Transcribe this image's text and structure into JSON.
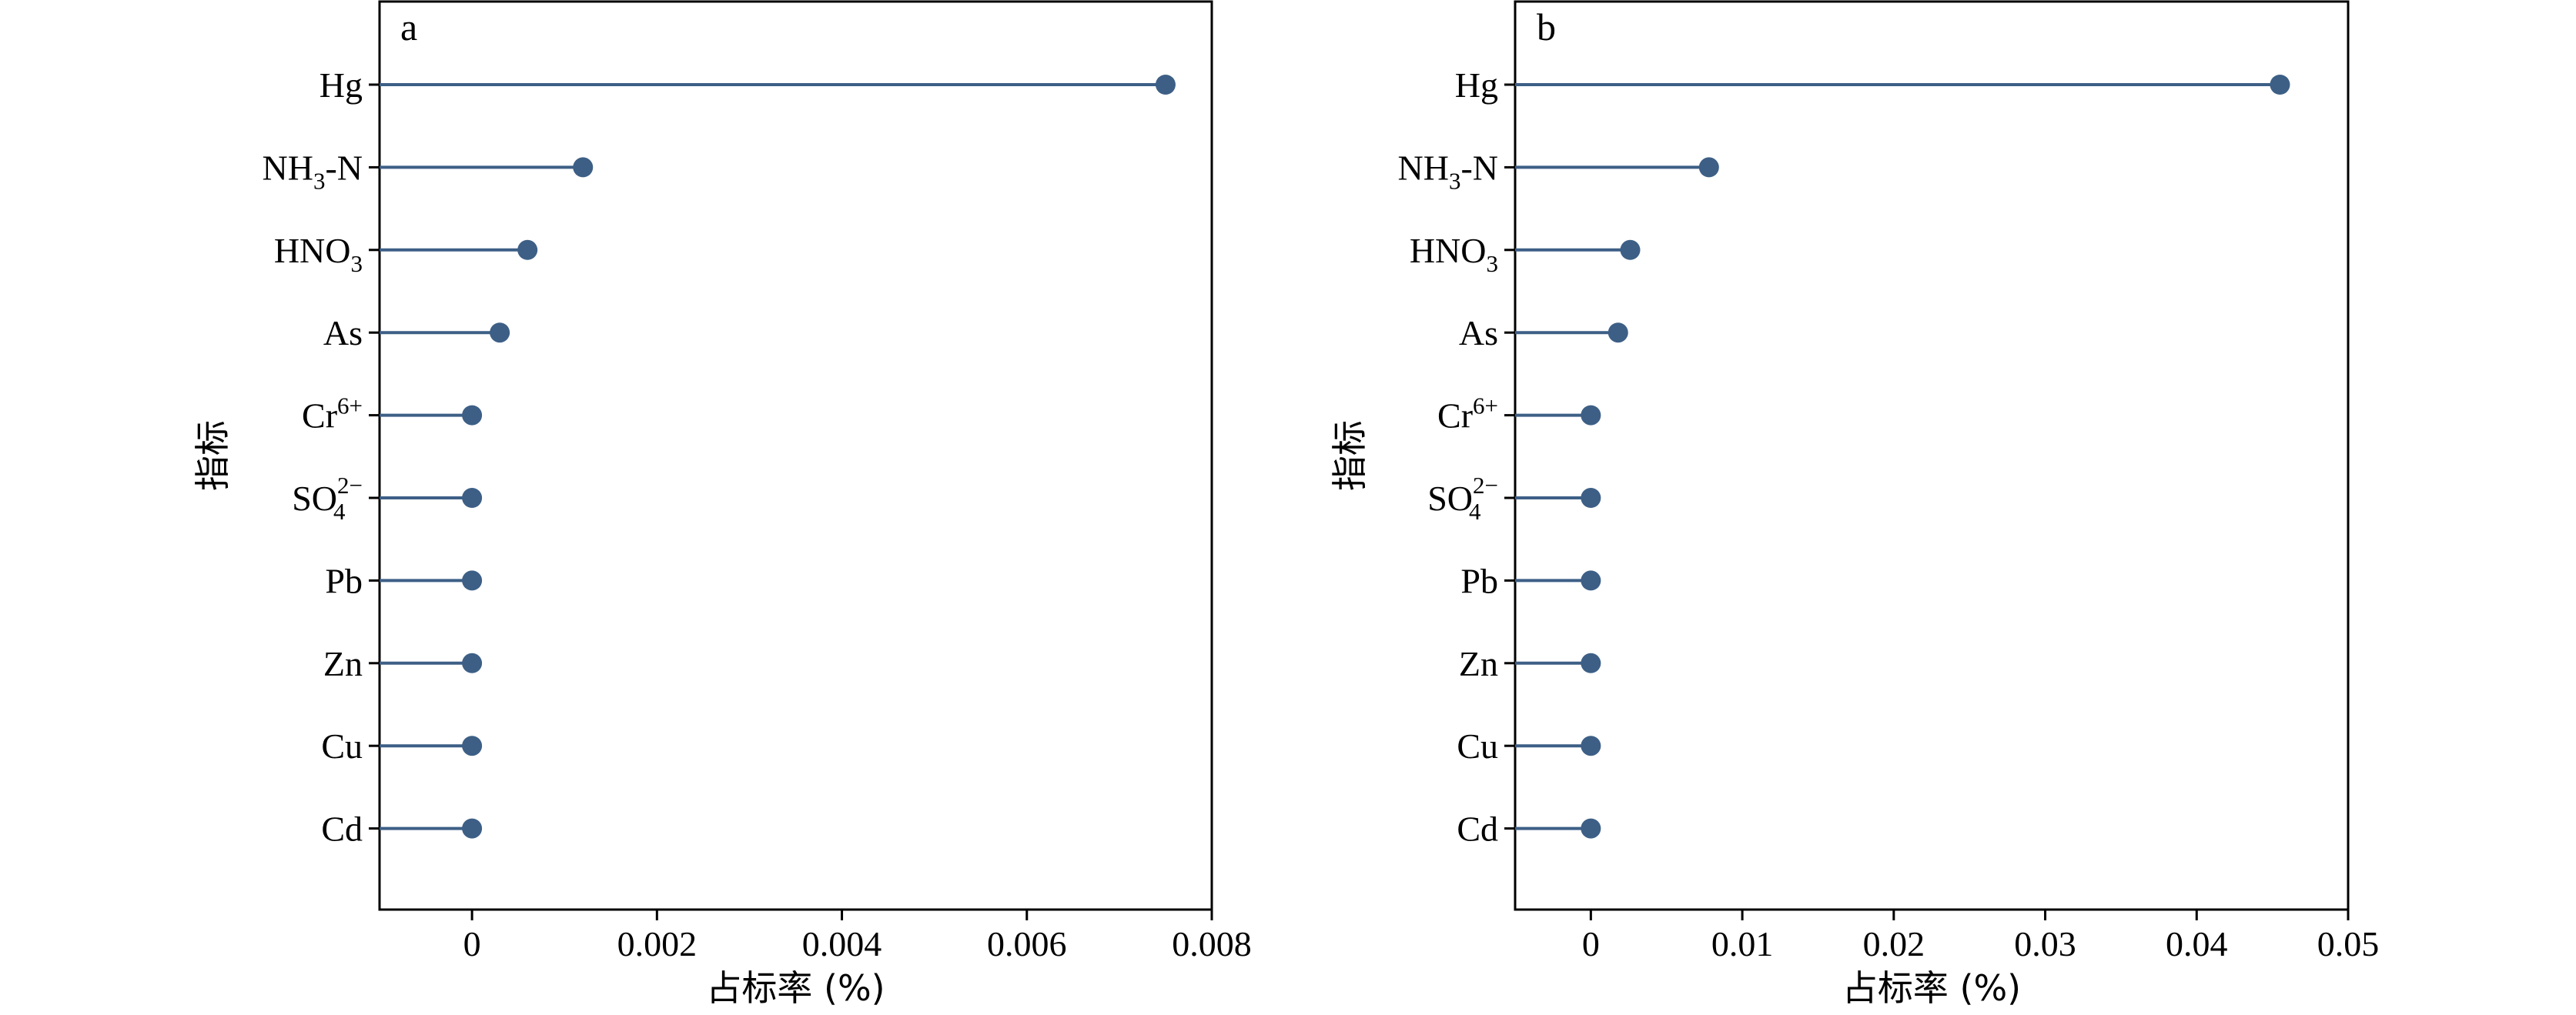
{
  "colors": {
    "marker": "#3d5f86",
    "axis": "#000000"
  },
  "chart_data": [
    {
      "type": "lollipop",
      "panel_label": "a",
      "ylabel": "指标",
      "xlabel": "占标率 (%)",
      "xlim": [
        -0.001,
        0.008
      ],
      "xticks": [
        0,
        0.002,
        0.004,
        0.006,
        0.008
      ],
      "xtick_labels": [
        "0",
        "0.002",
        "0.004",
        "0.006",
        "0.008"
      ],
      "grid": false,
      "categories": [
        {
          "main": "Hg",
          "sub": "",
          "sup": ""
        },
        {
          "main": "NH",
          "sub": "3",
          "sup": "",
          "tail": "-N"
        },
        {
          "main": "HNO",
          "sub": "3",
          "sup": ""
        },
        {
          "main": "As",
          "sub": "",
          "sup": ""
        },
        {
          "main": "Cr",
          "sub": "",
          "sup": "6+"
        },
        {
          "main": "SO",
          "sub": "4",
          "sup": "2−"
        },
        {
          "main": "Pb",
          "sub": "",
          "sup": ""
        },
        {
          "main": "Zn",
          "sub": "",
          "sup": ""
        },
        {
          "main": "Cu",
          "sub": "",
          "sup": ""
        },
        {
          "main": "Cd",
          "sub": "",
          "sup": ""
        }
      ],
      "values": [
        0.0075,
        0.0012,
        0.0006,
        0.0003,
        0.0,
        0.0,
        0.0,
        0.0,
        0.0,
        0.0
      ]
    },
    {
      "type": "lollipop",
      "panel_label": "b",
      "ylabel": "指标",
      "xlabel": "占标率 (%)",
      "xlim": [
        -0.005,
        0.05
      ],
      "xticks": [
        0,
        0.01,
        0.02,
        0.03,
        0.04,
        0.05
      ],
      "xtick_labels": [
        "0",
        "0.01",
        "0.02",
        "0.03",
        "0.04",
        "0.05"
      ],
      "grid": false,
      "categories": [
        {
          "main": "Hg",
          "sub": "",
          "sup": ""
        },
        {
          "main": "NH",
          "sub": "3",
          "sup": "",
          "tail": "-N"
        },
        {
          "main": "HNO",
          "sub": "3",
          "sup": ""
        },
        {
          "main": "As",
          "sub": "",
          "sup": ""
        },
        {
          "main": "Cr",
          "sub": "",
          "sup": "6+"
        },
        {
          "main": "SO",
          "sub": "4",
          "sup": "2−"
        },
        {
          "main": "Pb",
          "sub": "",
          "sup": ""
        },
        {
          "main": "Zn",
          "sub": "",
          "sup": ""
        },
        {
          "main": "Cu",
          "sub": "",
          "sup": ""
        },
        {
          "main": "Cd",
          "sub": "",
          "sup": ""
        }
      ],
      "values": [
        0.0455,
        0.0078,
        0.0026,
        0.0018,
        0.0,
        0.0,
        0.0,
        0.0,
        0.0,
        0.0
      ]
    }
  ]
}
